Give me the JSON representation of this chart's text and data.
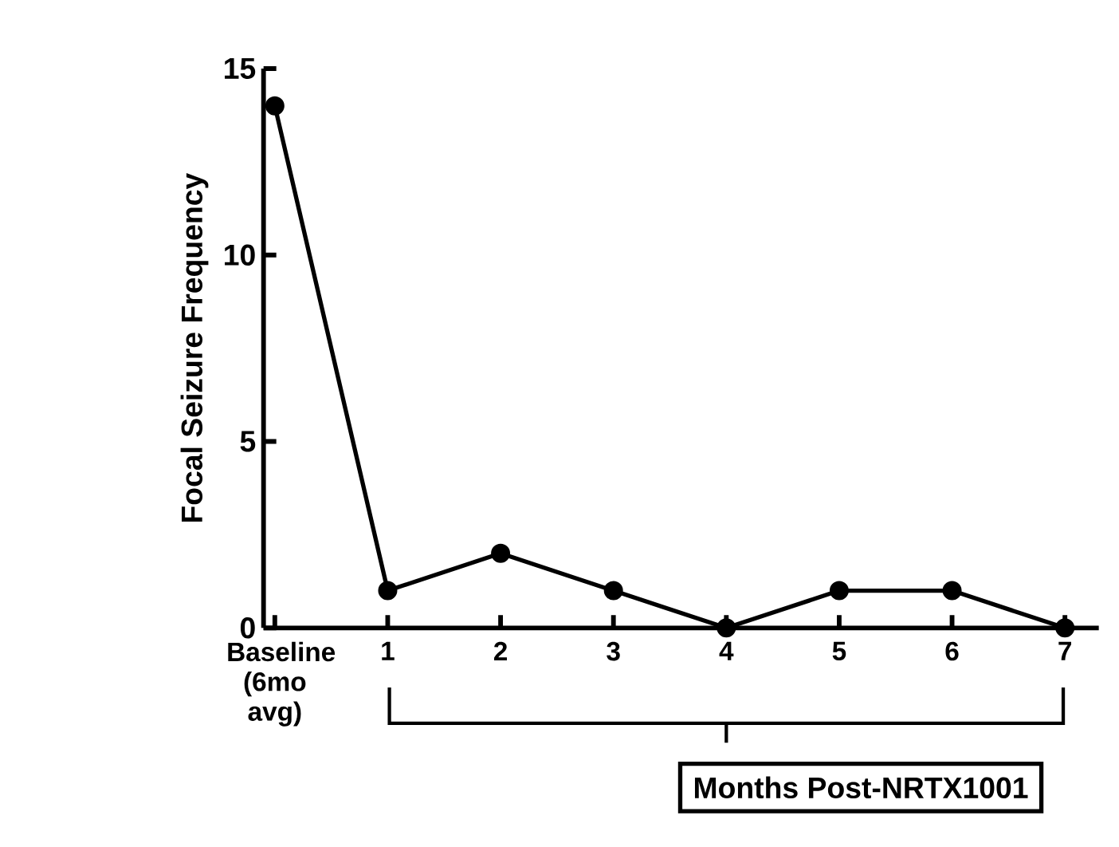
{
  "chart_data": {
    "type": "line",
    "ylabel": "Focal Seizure Frequency",
    "categories": [
      "Baseline (6mo avg)",
      "1",
      "2",
      "3",
      "4",
      "5",
      "6",
      "7"
    ],
    "series": [
      {
        "color": "#000000",
        "values": [
          14,
          1,
          2,
          1,
          0,
          1,
          1,
          0
        ]
      }
    ],
    "ylim": [
      0,
      15
    ],
    "yticks": [
      0,
      5,
      10,
      15
    ],
    "marker": "circle",
    "line_style": "solid",
    "grid": false,
    "annotations": [
      "Months Post-NRTX1001"
    ]
  }
}
